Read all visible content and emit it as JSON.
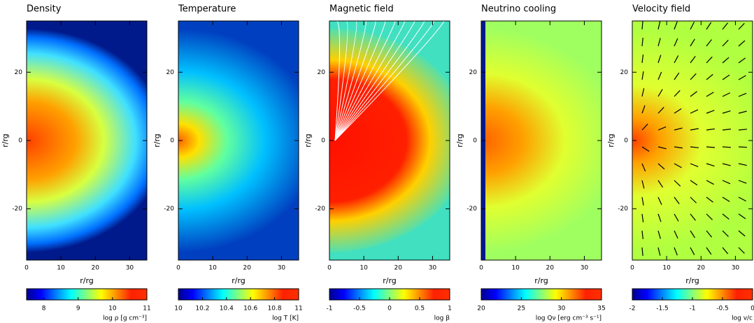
{
  "chart_data": [
    {
      "type": "heatmap",
      "title": "Density",
      "xlabel": "r/rg",
      "ylabel": "r/rg",
      "xlim": [
        0,
        35
      ],
      "ylim": [
        -35,
        35
      ],
      "xticks": [
        0,
        10,
        20,
        30
      ],
      "yticks": [
        -20,
        0,
        20
      ],
      "colorbar": {
        "label": "log ρ [g cm⁻³]",
        "lim": [
          7.5,
          11
        ],
        "ticks": [
          8,
          9,
          10,
          11
        ]
      }
    },
    {
      "type": "heatmap",
      "title": "Temperature",
      "xlabel": "r/rg",
      "ylabel": "r/rg",
      "xlim": [
        0,
        35
      ],
      "ylim": [
        -35,
        35
      ],
      "xticks": [
        0,
        10,
        20,
        30
      ],
      "yticks": [
        -20,
        0,
        20
      ],
      "colorbar": {
        "label": "log T [K]",
        "lim": [
          10,
          11
        ],
        "ticks": [
          10,
          10.2,
          10.4,
          10.6,
          10.8,
          11
        ]
      }
    },
    {
      "type": "heatmap",
      "title": "Magnetic field",
      "xlabel": "r/rg",
      "ylabel": "r/rg",
      "xlim": [
        0,
        35
      ],
      "ylim": [
        -35,
        35
      ],
      "xticks": [
        0,
        10,
        20,
        30
      ],
      "yticks": [
        -20,
        0,
        20
      ],
      "colorbar": {
        "label": "log β",
        "lim": [
          -1,
          1
        ],
        "ticks": [
          -1,
          -0.5,
          0,
          0.5,
          1
        ]
      }
    },
    {
      "type": "heatmap",
      "title": "Neutrino cooling",
      "xlabel": "r/rg",
      "ylabel": "r/rg",
      "xlim": [
        0,
        35
      ],
      "ylim": [
        -35,
        35
      ],
      "xticks": [
        0,
        10,
        20,
        30
      ],
      "yticks": [
        -20,
        0,
        20
      ],
      "colorbar": {
        "label": "log Qν [erg cm⁻³ s⁻¹]",
        "lim": [
          20,
          35
        ],
        "ticks": [
          20,
          25,
          30,
          35
        ]
      }
    },
    {
      "type": "heatmap",
      "title": "Velocity field",
      "xlabel": "r/rg",
      "ylabel": "r/rg",
      "xlim": [
        0,
        35
      ],
      "ylim": [
        -35,
        35
      ],
      "xticks": [
        0,
        10,
        20,
        30
      ],
      "yticks": [
        -20,
        0,
        20
      ],
      "colorbar": {
        "label": "log v/c",
        "lim": [
          -2,
          0
        ],
        "ticks": [
          -2,
          -1.5,
          -1,
          -0.5,
          0
        ]
      }
    }
  ]
}
